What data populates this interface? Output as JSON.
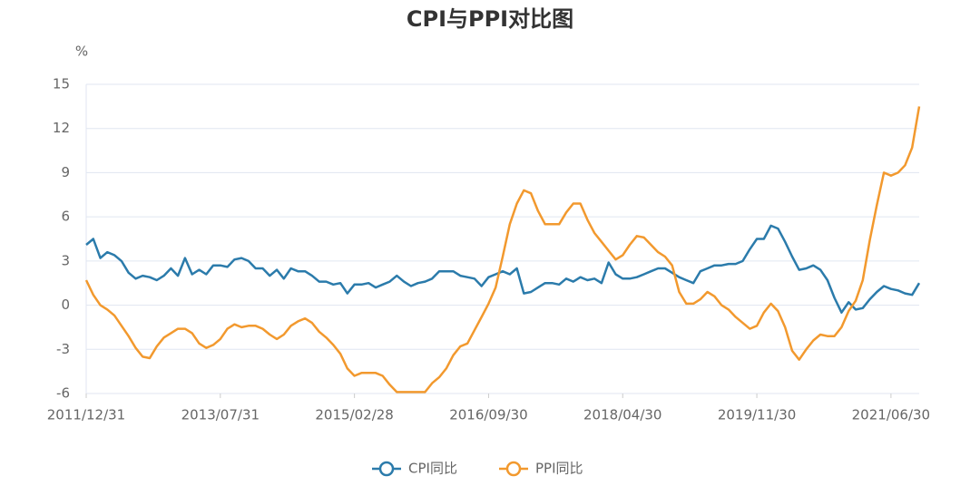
{
  "chart_data": {
    "type": "line",
    "title": "CPI与PPI对比图",
    "y_label": "%",
    "categories": [
      "2011/12/31",
      null,
      null,
      null,
      null,
      null,
      null,
      null,
      null,
      null,
      null,
      null,
      null,
      null,
      null,
      null,
      null,
      null,
      null,
      "2013/07/31",
      null,
      null,
      null,
      null,
      null,
      null,
      null,
      null,
      null,
      null,
      null,
      null,
      null,
      null,
      null,
      null,
      null,
      null,
      "2015/02/28",
      null,
      null,
      null,
      null,
      null,
      null,
      null,
      null,
      null,
      null,
      null,
      null,
      null,
      null,
      null,
      null,
      null,
      null,
      "2016/09/30",
      null,
      null,
      null,
      null,
      null,
      null,
      null,
      null,
      null,
      null,
      null,
      null,
      null,
      null,
      null,
      null,
      null,
      null,
      "2018/04/30",
      null,
      null,
      null,
      null,
      null,
      null,
      null,
      null,
      null,
      null,
      null,
      null,
      null,
      null,
      null,
      null,
      null,
      null,
      "2019/11/30",
      null,
      null,
      null,
      null,
      null,
      null,
      null,
      null,
      null,
      null,
      null,
      null,
      null,
      null,
      null,
      null,
      null,
      null,
      "2021/06/30",
      null,
      null,
      null,
      null
    ],
    "series": [
      {
        "name": "CPI同比",
        "color": "#2b7bab",
        "values": [
          4.1,
          4.5,
          3.2,
          3.6,
          3.4,
          3.0,
          2.2,
          1.8,
          2.0,
          1.9,
          1.7,
          2.0,
          2.5,
          2.0,
          3.2,
          2.1,
          2.4,
          2.1,
          2.7,
          2.7,
          2.6,
          3.1,
          3.2,
          3.0,
          2.5,
          2.5,
          2.0,
          2.4,
          1.8,
          2.5,
          2.3,
          2.3,
          2.0,
          1.6,
          1.6,
          1.4,
          1.5,
          0.8,
          1.4,
          1.4,
          1.5,
          1.2,
          1.4,
          1.6,
          2.0,
          1.6,
          1.3,
          1.5,
          1.6,
          1.8,
          2.3,
          2.3,
          2.3,
          2.0,
          1.9,
          1.8,
          1.3,
          1.9,
          2.1,
          2.3,
          2.1,
          2.5,
          0.8,
          0.9,
          1.2,
          1.5,
          1.5,
          1.4,
          1.8,
          1.6,
          1.9,
          1.7,
          1.8,
          1.5,
          2.9,
          2.1,
          1.8,
          1.8,
          1.9,
          2.1,
          2.3,
          2.5,
          2.5,
          2.2,
          1.9,
          1.7,
          1.5,
          2.3,
          2.5,
          2.7,
          2.7,
          2.8,
          2.8,
          3.0,
          3.8,
          4.5,
          4.5,
          5.4,
          5.2,
          4.3,
          3.3,
          2.4,
          2.5,
          2.7,
          2.4,
          1.7,
          0.5,
          -0.5,
          0.2,
          -0.3,
          -0.2,
          0.4,
          0.9,
          1.3,
          1.1,
          1.0,
          0.8,
          0.7,
          1.5
        ]
      },
      {
        "name": "PPI同比",
        "color": "#f2992e",
        "values": [
          1.7,
          0.7,
          0.0,
          -0.3,
          -0.7,
          -1.4,
          -2.1,
          -2.9,
          -3.5,
          -3.6,
          -2.8,
          -2.2,
          -1.9,
          -1.6,
          -1.6,
          -1.9,
          -2.6,
          -2.9,
          -2.7,
          -2.3,
          -1.6,
          -1.3,
          -1.5,
          -1.4,
          -1.4,
          -1.6,
          -2.0,
          -2.3,
          -2.0,
          -1.4,
          -1.1,
          -0.9,
          -1.2,
          -1.8,
          -2.2,
          -2.7,
          -3.3,
          -4.3,
          -4.8,
          -4.6,
          -4.6,
          -4.6,
          -4.8,
          -5.4,
          -5.9,
          -5.9,
          -5.9,
          -5.9,
          -5.9,
          -5.3,
          -4.9,
          -4.3,
          -3.4,
          -2.8,
          -2.6,
          -1.7,
          -0.8,
          0.1,
          1.2,
          3.3,
          5.5,
          6.9,
          7.8,
          7.6,
          6.4,
          5.5,
          5.5,
          5.5,
          6.3,
          6.9,
          6.9,
          5.8,
          4.9,
          4.3,
          3.7,
          3.1,
          3.4,
          4.1,
          4.7,
          4.6,
          4.1,
          3.6,
          3.3,
          2.7,
          0.9,
          0.1,
          0.1,
          0.4,
          0.9,
          0.6,
          0.0,
          -0.3,
          -0.8,
          -1.2,
          -1.6,
          -1.4,
          -0.5,
          0.1,
          -0.4,
          -1.5,
          -3.1,
          -3.7,
          -3.0,
          -2.4,
          -2.0,
          -2.1,
          -2.1,
          -1.5,
          -0.4,
          0.3,
          1.7,
          4.4,
          6.8,
          9.0,
          8.8,
          9.0,
          9.5,
          10.7,
          13.5
        ]
      }
    ],
    "ylim": [
      -6,
      15
    ],
    "yticks": [
      -6,
      -3,
      0,
      3,
      6,
      9,
      12,
      15
    ],
    "grid": true,
    "legend": "bottom"
  }
}
